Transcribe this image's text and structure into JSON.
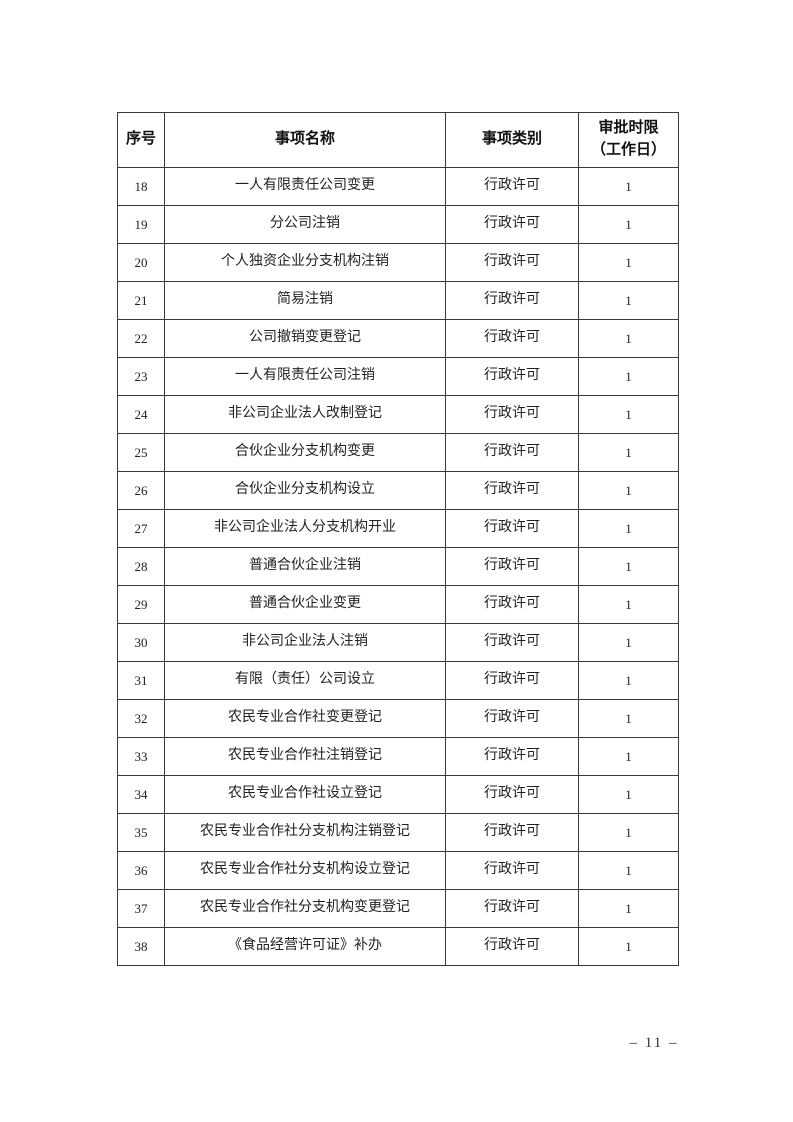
{
  "page": {
    "number_label": "– 11 –"
  },
  "table": {
    "headers": {
      "no": "序号",
      "name": "事项名称",
      "category": "事项类别",
      "time_limit": "审批时限\n（工作日）"
    },
    "rows": [
      {
        "no": "18",
        "name": "一人有限责任公司变更",
        "category": "行政许可",
        "days": "1"
      },
      {
        "no": "19",
        "name": "分公司注销",
        "category": "行政许可",
        "days": "1"
      },
      {
        "no": "20",
        "name": "个人独资企业分支机构注销",
        "category": "行政许可",
        "days": "1"
      },
      {
        "no": "21",
        "name": "简易注销",
        "category": "行政许可",
        "days": "1"
      },
      {
        "no": "22",
        "name": "公司撤销变更登记",
        "category": "行政许可",
        "days": "1"
      },
      {
        "no": "23",
        "name": "一人有限责任公司注销",
        "category": "行政许可",
        "days": "1"
      },
      {
        "no": "24",
        "name": "非公司企业法人改制登记",
        "category": "行政许可",
        "days": "1"
      },
      {
        "no": "25",
        "name": "合伙企业分支机构变更",
        "category": "行政许可",
        "days": "1"
      },
      {
        "no": "26",
        "name": "合伙企业分支机构设立",
        "category": "行政许可",
        "days": "1"
      },
      {
        "no": "27",
        "name": "非公司企业法人分支机构开业",
        "category": "行政许可",
        "days": "1"
      },
      {
        "no": "28",
        "name": "普通合伙企业注销",
        "category": "行政许可",
        "days": "1"
      },
      {
        "no": "29",
        "name": "普通合伙企业变更",
        "category": "行政许可",
        "days": "1"
      },
      {
        "no": "30",
        "name": "非公司企业法人注销",
        "category": "行政许可",
        "days": "1"
      },
      {
        "no": "31",
        "name": "有限（责任）公司设立",
        "category": "行政许可",
        "days": "1"
      },
      {
        "no": "32",
        "name": "农民专业合作社变更登记",
        "category": "行政许可",
        "days": "1"
      },
      {
        "no": "33",
        "name": "农民专业合作社注销登记",
        "category": "行政许可",
        "days": "1"
      },
      {
        "no": "34",
        "name": "农民专业合作社设立登记",
        "category": "行政许可",
        "days": "1"
      },
      {
        "no": "35",
        "name": "农民专业合作社分支机构注销登记",
        "category": "行政许可",
        "days": "1"
      },
      {
        "no": "36",
        "name": "农民专业合作社分支机构设立登记",
        "category": "行政许可",
        "days": "1"
      },
      {
        "no": "37",
        "name": "农民专业合作社分支机构变更登记",
        "category": "行政许可",
        "days": "1"
      },
      {
        "no": "38",
        "name": "《食品经营许可证》补办",
        "category": "行政许可",
        "days": "1"
      }
    ]
  }
}
